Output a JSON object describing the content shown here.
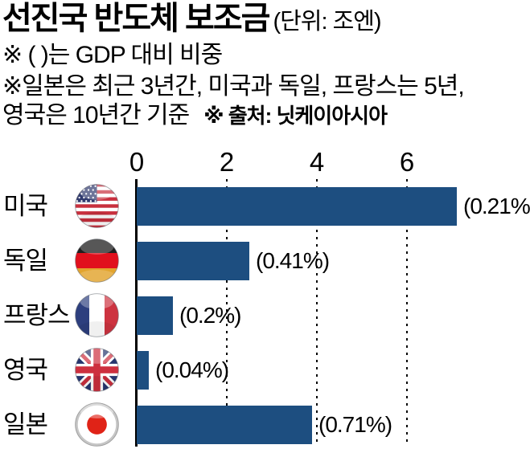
{
  "header": {
    "title": "선진국 반도체 보조금",
    "unit_label": "(단위: 조엔)",
    "note_gdp": "※ ( )는 GDP 대비 비중",
    "note_period_line1": "※일본은 최근 3년간, 미국과 독일, 프랑스는 5년,",
    "note_period_line2": "영국은 10년간 기준",
    "source": "※ 출처: 닛케이아시아"
  },
  "chart_data": {
    "type": "bar",
    "orientation": "horizontal",
    "title": "선진국 반도체 보조금",
    "unit": "조엔",
    "xlabel": "",
    "ylabel": "",
    "xlim": [
      0,
      7.3
    ],
    "xticks": [
      0,
      2,
      4,
      6
    ],
    "grid": "dotted vertical gridlines at 2, 4, 6",
    "legend": "none",
    "categories": [
      "미국",
      "독일",
      "프랑스",
      "영국",
      "일본"
    ],
    "values": [
      7.1,
      2.5,
      0.8,
      0.27,
      3.9
    ],
    "annotations": [
      "(0.21%)",
      "(0.41%)",
      "(0.2%)",
      "(0.04%)",
      "(0.71%)"
    ],
    "flag_icons": [
      "usa-flag-icon",
      "germany-flag-icon",
      "france-flag-icon",
      "uk-flag-icon",
      "japan-flag-icon"
    ],
    "bar_color": "#1d4e80",
    "axis_color": "#000000"
  }
}
